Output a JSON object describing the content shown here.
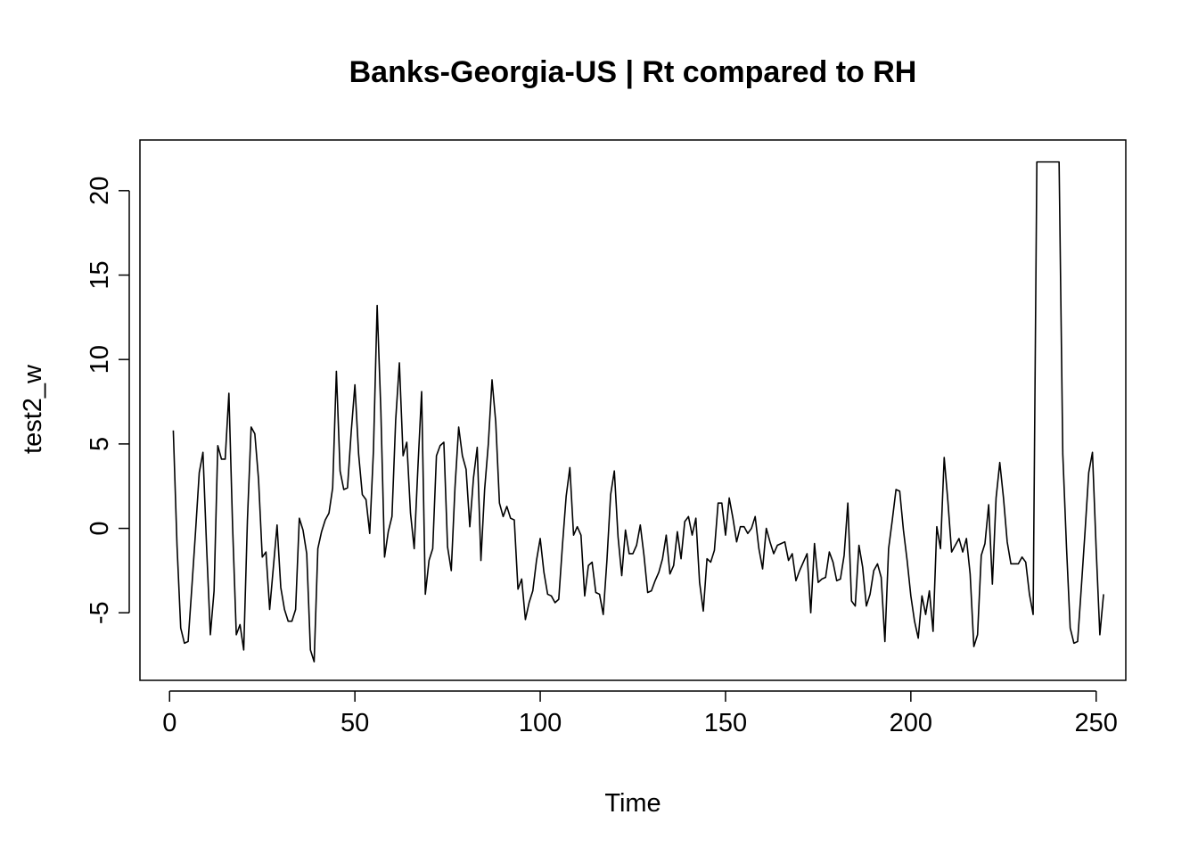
{
  "chart_data": {
    "type": "line",
    "title": "Banks-Georgia-US | Rt compared to RH",
    "xlabel": "Time",
    "ylabel": "test2_w",
    "xlim": [
      -8,
      258
    ],
    "ylim": [
      -9,
      23
    ],
    "x_ticks": [
      0,
      50,
      100,
      150,
      200,
      250
    ],
    "y_ticks": [
      -5,
      0,
      5,
      10,
      15,
      20
    ],
    "grid": false,
    "legend": "none",
    "colors": {
      "line": "#000000",
      "axis": "#000000",
      "background": "#ffffff"
    },
    "series": [
      {
        "x_start": 1,
        "values": [
          5.8,
          -1.0,
          -5.9,
          -6.8,
          -6.7,
          -3.5,
          -0.2,
          3.3,
          4.5,
          -1.2,
          -6.3,
          -3.7,
          4.9,
          4.1,
          4.1,
          8.0,
          0.1,
          -6.3,
          -5.7,
          -7.2,
          0.5,
          6.0,
          5.6,
          2.9,
          -1.7,
          -1.4,
          -4.8,
          -2.3,
          0.2,
          -3.5,
          -4.8,
          -5.5,
          -5.5,
          -4.8,
          0.6,
          -0.1,
          -1.5,
          -7.2,
          -7.9,
          -1.2,
          -0.2,
          0.5,
          0.9,
          2.4,
          9.3,
          3.4,
          2.3,
          2.4,
          5.7,
          8.5,
          4.4,
          2.0,
          1.7,
          -0.3,
          4.6,
          13.2,
          7.0,
          -1.7,
          -0.2,
          0.7,
          6.4,
          9.8,
          4.3,
          5.1,
          0.9,
          -1.2,
          3.6,
          8.1,
          -3.9,
          -1.9,
          -1.2,
          4.3,
          4.9,
          5.1,
          -1.1,
          -2.5,
          2.4,
          6.0,
          4.3,
          3.5,
          0.1,
          3.0,
          4.8,
          -1.9,
          2.3,
          5.0,
          8.8,
          6.3,
          1.5,
          0.7,
          1.3,
          0.6,
          0.5,
          -3.6,
          -3.0,
          -5.4,
          -4.4,
          -3.7,
          -1.9,
          -0.6,
          -2.6,
          -3.9,
          -4.0,
          -4.4,
          -4.2,
          -1.0,
          1.9,
          3.6,
          -0.4,
          0.1,
          -0.4,
          -4.0,
          -2.2,
          -2.0,
          -3.8,
          -3.9,
          -5.1,
          -1.9,
          2.0,
          3.4,
          -0.5,
          -2.8,
          -0.1,
          -1.5,
          -1.5,
          -1.0,
          0.2,
          -1.6,
          -3.8,
          -3.7,
          -3.1,
          -2.6,
          -1.8,
          -0.4,
          -2.7,
          -2.2,
          -0.2,
          -1.8,
          0.4,
          0.7,
          -0.4,
          0.6,
          -3.2,
          -4.9,
          -1.8,
          -2.0,
          -1.3,
          1.5,
          1.5,
          -0.4,
          1.8,
          0.6,
          -0.8,
          0.1,
          0.1,
          -0.3,
          0.0,
          0.7,
          -1.2,
          -2.4,
          0.0,
          -0.8,
          -1.5,
          -1.0,
          -0.9,
          -0.8,
          -1.9,
          -1.5,
          -3.1,
          -2.5,
          -2.0,
          -1.5,
          -5.0,
          -0.9,
          -3.2,
          -3.0,
          -2.9,
          -1.4,
          -2.0,
          -3.1,
          -3.0,
          -1.6,
          1.5,
          -4.3,
          -4.6,
          -1.0,
          -2.3,
          -4.6,
          -3.9,
          -2.5,
          -2.1,
          -2.9,
          -6.7,
          -1.2,
          0.5,
          2.3,
          2.2,
          -0.1,
          -1.9,
          -4.0,
          -5.5,
          -6.5,
          -4.0,
          -5.1,
          -3.7,
          -6.1,
          0.1,
          -1.2,
          4.2,
          1.6,
          -1.4,
          -1.0,
          -0.6,
          -1.4,
          -0.6,
          -2.7,
          -7.0,
          -6.3,
          -1.6,
          -0.9,
          1.4,
          -3.3,
          1.8,
          3.9,
          1.8,
          -0.8,
          -2.1,
          -2.1,
          -2.1,
          -1.7,
          -2.0,
          -3.9,
          -5.1,
          21.7,
          21.7,
          21.7,
          21.7,
          21.7,
          21.7,
          21.7,
          4.4,
          -1.1,
          -5.9,
          -6.8,
          -6.7,
          -3.5,
          -0.2,
          3.3,
          4.5,
          -1.2,
          -6.3,
          -3.9
        ]
      }
    ]
  }
}
